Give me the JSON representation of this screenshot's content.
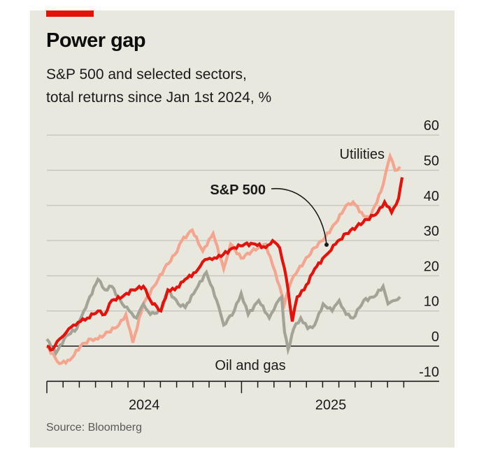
{
  "header": {
    "title": "Power gap",
    "subtitle_line1": "S&P 500 and selected sectors,",
    "subtitle_line2": "total returns since Jan 1st 2024, %"
  },
  "footer": {
    "source": "Source: Bloomberg"
  },
  "colors": {
    "accent_bar": "#e3120b",
    "sp500": "#e3120b",
    "utilities": "#f4a58f",
    "oil_and_gas": "#a3a398",
    "gridline": "#c6c5bb",
    "axis": "#1a1a1a",
    "background": "#e9e8df"
  },
  "chart_data": {
    "type": "line",
    "title": "Power gap",
    "subtitle": "S&P 500 and selected sectors, total returns since Jan 1st 2024, %",
    "xlabel": "",
    "ylabel": "%",
    "ylim": [
      -10,
      60
    ],
    "yticks": [
      60,
      50,
      40,
      30,
      20,
      10,
      0,
      -10
    ],
    "xlim_months": [
      0,
      22
    ],
    "xticks_major": [
      {
        "label": "2024",
        "month_start": 0,
        "month_end": 12
      },
      {
        "label": "2025",
        "month_start": 12,
        "month_end": 22
      }
    ],
    "xtick_minor_count": 22,
    "grid": true,
    "legend": "inline-labels",
    "x_unit": "months since Jan 1st 2024",
    "series": [
      {
        "name": "S&P 500",
        "label_style": "bold-with-callout",
        "x": [
          0,
          0.35,
          0.78,
          1.21,
          1.64,
          2.07,
          2.5,
          3.15,
          3.58,
          4.0,
          4.65,
          5.3,
          5.95,
          6.38,
          7.03,
          7.46,
          7.89,
          8.53,
          9.18,
          9.61,
          10.04,
          10.47,
          11.55,
          12.2,
          12.84,
          13.49,
          13.92,
          14.35,
          14.65,
          14.87,
          15.13,
          15.43,
          15.86,
          16.51,
          17.24,
          17.8,
          18.45,
          19.1,
          19.74,
          20.39,
          20.82,
          21.25,
          21.68,
          21.9
        ],
        "values": [
          0,
          -1,
          2,
          4,
          6,
          7,
          8,
          10,
          9,
          13,
          14,
          16,
          17,
          13,
          10,
          16,
          16,
          19,
          21,
          24,
          25,
          25,
          28,
          29,
          29,
          28,
          30,
          28,
          22,
          16,
          7,
          14,
          16,
          22,
          26,
          29,
          32,
          34,
          36,
          38,
          41,
          38,
          42,
          48
        ]
      },
      {
        "name": "Utilities",
        "label_style": "plain",
        "x": [
          0,
          0.78,
          1.42,
          2.07,
          2.72,
          3.15,
          3.79,
          4.44,
          4.87,
          5.3,
          5.95,
          6.6,
          7.24,
          7.89,
          8.32,
          8.96,
          9.61,
          10.25,
          10.9,
          11.33,
          11.98,
          12.63,
          13.49,
          13.92,
          14.35,
          14.65,
          14.87,
          15.22,
          15.86,
          16.51,
          17.16,
          17.8,
          18.45,
          18.88,
          19.53,
          19.96,
          20.6,
          21.16,
          21.46,
          21.77
        ],
        "values": [
          0,
          -5,
          -4,
          0,
          2,
          2,
          4,
          6,
          9,
          1,
          12,
          17,
          22,
          26,
          30,
          33,
          27,
          32,
          22,
          29,
          25,
          27,
          29,
          23,
          17,
          12,
          16,
          20,
          24,
          28,
          31,
          35,
          40,
          41,
          37,
          37,
          44,
          54,
          50,
          51
        ]
      },
      {
        "name": "Oil and gas",
        "label_style": "plain",
        "x": [
          0,
          0.56,
          1.21,
          1.85,
          2.28,
          3.15,
          3.58,
          4.0,
          4.65,
          5.08,
          5.52,
          5.95,
          6.38,
          7.03,
          7.46,
          8.1,
          8.53,
          9.18,
          9.83,
          10.47,
          10.9,
          11.55,
          11.98,
          12.41,
          13.06,
          13.71,
          14.14,
          14.48,
          14.65,
          14.87,
          15.22,
          15.65,
          16.08,
          16.51,
          17.03,
          17.59,
          18.02,
          18.45,
          18.88,
          19.53,
          20.17,
          20.73,
          21.03,
          21.46,
          21.77
        ],
        "values": [
          2,
          -2,
          3,
          5,
          10,
          19,
          16,
          17,
          12,
          10,
          8,
          12,
          9,
          10,
          16,
          12,
          11,
          16,
          21,
          13,
          6,
          10,
          15,
          9,
          13,
          8,
          12,
          14,
          4,
          -1,
          5,
          8,
          5,
          6,
          12,
          10,
          13,
          9,
          8,
          13,
          14,
          17,
          12,
          13,
          14
        ]
      }
    ],
    "annotations": [
      {
        "text": "Utilities",
        "series": "Utilities"
      },
      {
        "text": "S&P 500",
        "series": "S&P 500",
        "callout": true
      },
      {
        "text": "Oil and gas",
        "series": "Oil and gas"
      }
    ]
  }
}
